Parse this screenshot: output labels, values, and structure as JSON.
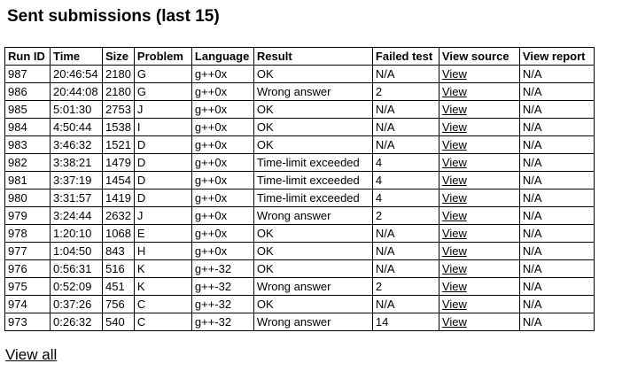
{
  "title": "Sent submissions (last 15)",
  "footer": {
    "view_all_label": "View all"
  },
  "table": {
    "columns": [
      {
        "key": "run_id",
        "label": "Run ID"
      },
      {
        "key": "time",
        "label": "Time"
      },
      {
        "key": "size",
        "label": "Size"
      },
      {
        "key": "problem",
        "label": "Problem"
      },
      {
        "key": "language",
        "label": "Language"
      },
      {
        "key": "result",
        "label": "Result"
      },
      {
        "key": "failed_test",
        "label": "Failed test"
      },
      {
        "key": "view_source",
        "label": "View source"
      },
      {
        "key": "view_report",
        "label": "View report"
      }
    ],
    "link_value": "View",
    "rows": [
      {
        "run_id": "987",
        "time": "20:46:54",
        "size": "2180",
        "problem": "G",
        "language": "g++0x",
        "result": "OK",
        "failed_test": "N/A",
        "view_source": "View",
        "view_report": "N/A"
      },
      {
        "run_id": "986",
        "time": "20:44:08",
        "size": "2180",
        "problem": "G",
        "language": "g++0x",
        "result": "Wrong answer",
        "failed_test": "2",
        "view_source": "View",
        "view_report": "N/A"
      },
      {
        "run_id": "985",
        "time": "5:01:30",
        "size": "2753",
        "problem": "J",
        "language": "g++0x",
        "result": "OK",
        "failed_test": "N/A",
        "view_source": "View",
        "view_report": "N/A"
      },
      {
        "run_id": "984",
        "time": "4:50:44",
        "size": "1538",
        "problem": "I",
        "language": "g++0x",
        "result": "OK",
        "failed_test": "N/A",
        "view_source": "View",
        "view_report": "N/A"
      },
      {
        "run_id": "983",
        "time": "3:46:32",
        "size": "1521",
        "problem": "D",
        "language": "g++0x",
        "result": "OK",
        "failed_test": "N/A",
        "view_source": "View",
        "view_report": "N/A"
      },
      {
        "run_id": "982",
        "time": "3:38:21",
        "size": "1479",
        "problem": "D",
        "language": "g++0x",
        "result": "Time-limit exceeded",
        "failed_test": "4",
        "view_source": "View",
        "view_report": "N/A"
      },
      {
        "run_id": "981",
        "time": "3:37:19",
        "size": "1454",
        "problem": "D",
        "language": "g++0x",
        "result": "Time-limit exceeded",
        "failed_test": "4",
        "view_source": "View",
        "view_report": "N/A"
      },
      {
        "run_id": "980",
        "time": "3:31:57",
        "size": "1419",
        "problem": "D",
        "language": "g++0x",
        "result": "Time-limit exceeded",
        "failed_test": "4",
        "view_source": "View",
        "view_report": "N/A"
      },
      {
        "run_id": "979",
        "time": "3:24:44",
        "size": "2632",
        "problem": "J",
        "language": "g++0x",
        "result": "Wrong answer",
        "failed_test": "2",
        "view_source": "View",
        "view_report": "N/A"
      },
      {
        "run_id": "978",
        "time": "1:20:10",
        "size": "1068",
        "problem": "E",
        "language": "g++0x",
        "result": "OK",
        "failed_test": "N/A",
        "view_source": "View",
        "view_report": "N/A"
      },
      {
        "run_id": "977",
        "time": "1:04:50",
        "size": "843",
        "problem": "H",
        "language": "g++0x",
        "result": "OK",
        "failed_test": "N/A",
        "view_source": "View",
        "view_report": "N/A"
      },
      {
        "run_id": "976",
        "time": "0:56:31",
        "size": "516",
        "problem": "K",
        "language": "g++-32",
        "result": "OK",
        "failed_test": "N/A",
        "view_source": "View",
        "view_report": "N/A"
      },
      {
        "run_id": "975",
        "time": "0:52:09",
        "size": "451",
        "problem": "K",
        "language": "g++-32",
        "result": "Wrong answer",
        "failed_test": "2",
        "view_source": "View",
        "view_report": "N/A"
      },
      {
        "run_id": "974",
        "time": "0:37:26",
        "size": "756",
        "problem": "C",
        "language": "g++-32",
        "result": "OK",
        "failed_test": "N/A",
        "view_source": "View",
        "view_report": "N/A"
      },
      {
        "run_id": "973",
        "time": "0:26:32",
        "size": "540",
        "problem": "C",
        "language": "g++-32",
        "result": "Wrong answer",
        "failed_test": "14",
        "view_source": "View",
        "view_report": "N/A"
      }
    ]
  }
}
